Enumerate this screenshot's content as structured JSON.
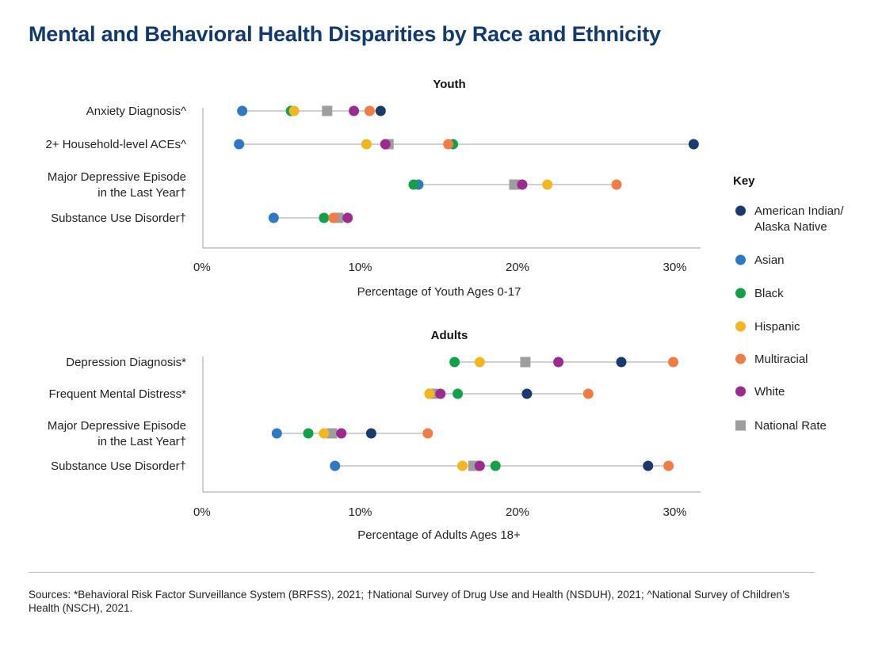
{
  "title": "Mental and Behavioral Health Disparities by Race and Ethnicity",
  "key": {
    "title": "Key",
    "entries": [
      {
        "id": "aian",
        "label_lines": [
          "American Indian/",
          "Alaska Native"
        ],
        "color": "#1b3a6b",
        "shape": "circle"
      },
      {
        "id": "asian",
        "label_lines": [
          "Asian"
        ],
        "color": "#2f78c4",
        "shape": "circle"
      },
      {
        "id": "black",
        "label_lines": [
          "Black"
        ],
        "color": "#14a04a",
        "shape": "circle"
      },
      {
        "id": "hispanic",
        "label_lines": [
          "Hispanic"
        ],
        "color": "#f3b620",
        "shape": "circle"
      },
      {
        "id": "multiracial",
        "label_lines": [
          "Multiracial"
        ],
        "color": "#f07d45",
        "shape": "circle"
      },
      {
        "id": "white",
        "label_lines": [
          "White"
        ],
        "color": "#9b2b8e",
        "shape": "circle"
      },
      {
        "id": "national",
        "label_lines": [
          "National Rate"
        ],
        "color": "#9e9e9e",
        "shape": "square"
      }
    ]
  },
  "chart_data": [
    {
      "type": "scatter",
      "title": "Youth",
      "xlabel": "Percentage of Youth Ages 0-17",
      "xlim": [
        0,
        31.5
      ],
      "ticks": [
        "0%",
        "10%",
        "20%",
        "30%"
      ],
      "tick_values": [
        0,
        10,
        20,
        30
      ],
      "categories": [
        {
          "label_lines": [
            "Anxiety Diagnosis^"
          ],
          "values": {
            "asian": 2.5,
            "black": 5.6,
            "hispanic": 5.8,
            "national": 7.9,
            "white": 9.6,
            "multiracial": 10.6,
            "aian": 11.3
          }
        },
        {
          "label_lines": [
            "2+ Household-level ACEs^"
          ],
          "values": {
            "asian": 2.3,
            "hispanic": 10.4,
            "national": 11.8,
            "white": 11.6,
            "multiracial": 15.6,
            "black": 15.9,
            "aian": 31.2
          }
        },
        {
          "label_lines": [
            "Major Depressive Episode",
            "in the Last Year†"
          ],
          "values": {
            "black": 13.4,
            "asian": 13.7,
            "national": 19.8,
            "white": 20.3,
            "hispanic": 21.9,
            "multiracial": 26.3
          }
        },
        {
          "label_lines": [
            "Substance Use Disorder†"
          ],
          "values": {
            "asian": 4.5,
            "black": 7.7,
            "multiracial": 8.3,
            "national": 8.6,
            "hispanic": 9.2,
            "white": 9.2
          }
        }
      ]
    },
    {
      "type": "scatter",
      "title": "Adults",
      "xlabel": "Percentage of Adults Ages 18+",
      "xlim": [
        0,
        31.5
      ],
      "ticks": [
        "0%",
        "10%",
        "20%",
        "30%"
      ],
      "tick_values": [
        0,
        10,
        20,
        30
      ],
      "categories": [
        {
          "label_lines": [
            "Depression Diagnosis*"
          ],
          "values": {
            "black": 16.0,
            "hispanic": 17.6,
            "national": 20.5,
            "white": 22.6,
            "aian": 26.6,
            "multiracial": 29.9
          }
        },
        {
          "label_lines": [
            "Frequent Mental Distress*"
          ],
          "values": {
            "hispanic": 14.4,
            "national": 14.6,
            "white": 15.1,
            "black": 16.2,
            "aian": 20.6,
            "multiracial": 24.5
          }
        },
        {
          "label_lines": [
            "Major Depressive Episode",
            "in the Last Year†"
          ],
          "values": {
            "asian": 4.7,
            "black": 6.7,
            "hispanic": 7.7,
            "national": 8.2,
            "white": 8.8,
            "aian": 10.7,
            "multiracial": 14.3
          }
        },
        {
          "label_lines": [
            "Substance Use Disorder†"
          ],
          "values": {
            "asian": 8.4,
            "hispanic": 16.5,
            "national": 17.2,
            "white": 17.6,
            "black": 18.6,
            "aian": 28.3,
            "multiracial": 29.6
          }
        }
      ]
    }
  ],
  "sources": "Sources: *Behavioral Risk Factor Surveillance System (BRFSS), 2021; †National Survey of Drug Use and Health (NSDUH), 2021; ^National Survey of Children’s Health (NSCH), 2021."
}
